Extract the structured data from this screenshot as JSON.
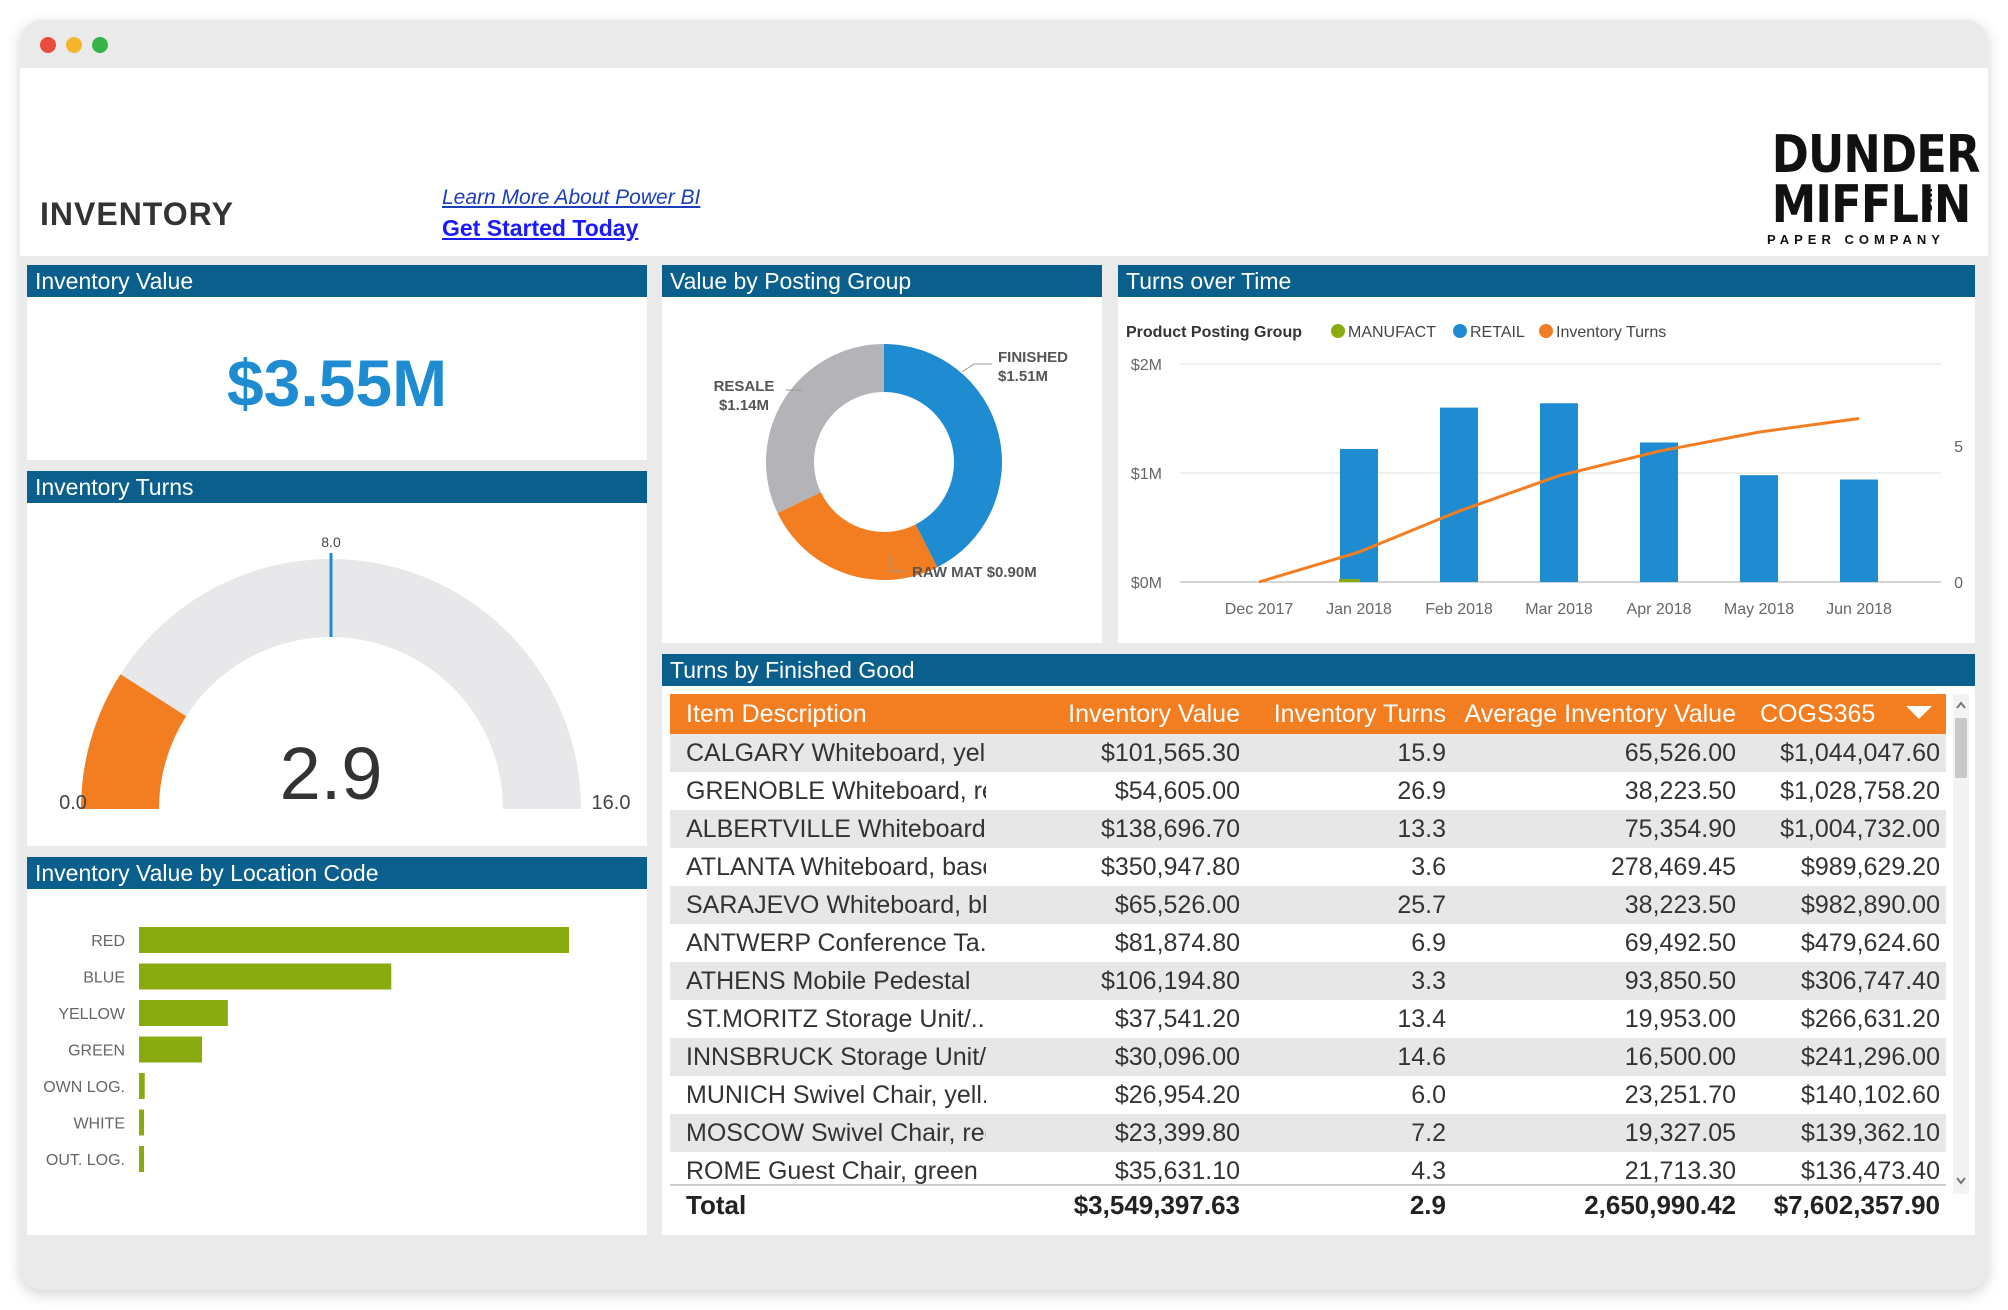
{
  "window": {
    "dots": [
      "#e94b3c",
      "#f5b62e",
      "#35b449"
    ]
  },
  "header": {
    "title": "INVENTORY",
    "learn_link": "Learn More About Power BI",
    "start_link": "Get Started Today",
    "logo": {
      "line1": "DUNDER",
      "line2": "MIFFLIN",
      "inc": "INC",
      "sub": "PAPER COMPANY"
    }
  },
  "colors": {
    "panel_header": "#0a5f8c",
    "accent_blue": "#1f8bd0",
    "orange": "#f37d21",
    "green": "#8aab10",
    "gray": "#b4b4b8"
  },
  "inventory_value": {
    "title": "Inventory Value",
    "value": "$3.55M"
  },
  "inventory_turns": {
    "title": "Inventory Turns",
    "value_label": "2.9",
    "value": 2.9,
    "min_label": "0.0",
    "max_label": "16.0",
    "target_label": "8.0",
    "min": 0,
    "max": 16,
    "target": 8
  },
  "location": {
    "title": "Inventory Value by Location Code",
    "chart_data": {
      "type": "bar",
      "orientation": "horizontal",
      "categories": [
        "RED",
        "BLUE",
        "YELLOW",
        "GREEN",
        "OWN LOG.",
        "WHITE",
        "OUT. LOG."
      ],
      "values": [
        1.5,
        0.88,
        0.31,
        0.22,
        0.02,
        0.015,
        0.015
      ],
      "xlim": [
        0,
        1.5
      ]
    }
  },
  "posting": {
    "title": "Value by Posting Group",
    "chart_data": {
      "type": "pie",
      "donut": true,
      "labels": [
        "FINISHED",
        "RAW MAT",
        "RESALE"
      ],
      "values": [
        1.51,
        0.9,
        1.14
      ],
      "value_labels": [
        "$1.51M",
        "$0.90M",
        "$1.14M"
      ],
      "raw_label": "RAW MAT $0.90M"
    }
  },
  "turns_time": {
    "title": "Turns over Time",
    "legend_title": "Product Posting Group",
    "legend": [
      {
        "label": "MANUFACT",
        "color": "#8aab10"
      },
      {
        "label": "RETAIL",
        "color": "#1f8bd0"
      },
      {
        "label": "Inventory Turns",
        "color": "#f37d21"
      }
    ],
    "chart_data": {
      "type": "bar",
      "categories": [
        "Dec 2017",
        "Jan 2018",
        "Feb 2018",
        "Mar 2018",
        "Apr 2018",
        "May 2018",
        "Jun 2018"
      ],
      "series": [
        {
          "name": "MANUFACT",
          "values": [
            0,
            0.01,
            0,
            0,
            0,
            0,
            0
          ]
        },
        {
          "name": "RETAIL",
          "values": [
            0,
            1.22,
            1.6,
            1.64,
            1.28,
            0.98,
            0.94
          ]
        },
        {
          "name": "Inventory Turns",
          "values": [
            0,
            1.1,
            2.6,
            3.9,
            4.8,
            5.5,
            6.0
          ]
        }
      ],
      "ylim": [
        0,
        2.0
      ],
      "y_ticks": [
        "$0M",
        "$1M",
        "$2M"
      ],
      "y2lim": [
        0,
        8
      ],
      "y2_ticks": [
        "0",
        "5"
      ]
    }
  },
  "finished_good": {
    "title": "Turns by Finished Good",
    "columns": [
      "Item Description",
      "Inventory Value",
      "Inventory Turns",
      "Average Inventory Value",
      "COGS365"
    ],
    "rows": [
      [
        "CALGARY Whiteboard, yel...",
        "$101,565.30",
        "15.9",
        "65,526.00",
        "$1,044,047.60"
      ],
      [
        "GRENOBLE Whiteboard, red",
        "$54,605.00",
        "26.9",
        "38,223.50",
        "$1,028,758.20"
      ],
      [
        "ALBERTVILLE Whiteboard, ...",
        "$138,696.70",
        "13.3",
        "75,354.90",
        "$1,004,732.00"
      ],
      [
        "ATLANTA Whiteboard, base",
        "$350,947.80",
        "3.6",
        "278,469.45",
        "$989,629.20"
      ],
      [
        "SARAJEVO Whiteboard, bl...",
        "$65,526.00",
        "25.7",
        "38,223.50",
        "$982,890.00"
      ],
      [
        "ANTWERP Conference Ta...",
        "$81,874.80",
        "6.9",
        "69,492.50",
        "$479,624.60"
      ],
      [
        "ATHENS Mobile Pedestal",
        "$106,194.80",
        "3.3",
        "93,850.50",
        "$306,747.40"
      ],
      [
        "ST.MORITZ Storage Unit/...",
        "$37,541.20",
        "13.4",
        "19,953.00",
        "$266,631.20"
      ],
      [
        "INNSBRUCK Storage Unit/...",
        "$30,096.00",
        "14.6",
        "16,500.00",
        "$241,296.00"
      ],
      [
        "MUNICH Swivel Chair, yell...",
        "$26,954.20",
        "6.0",
        "23,251.70",
        "$140,102.60"
      ],
      [
        "MOSCOW Swivel Chair, red",
        "$23,399.80",
        "7.2",
        "19,327.05",
        "$139,362.10"
      ],
      [
        "ROME Guest Chair, green",
        "$35,631.10",
        "4.3",
        "21,713.30",
        "$136,473.40"
      ]
    ],
    "total": [
      "Total",
      "$3,549,397.63",
      "2.9",
      "2,650,990.42",
      "$7,602,357.90"
    ]
  }
}
